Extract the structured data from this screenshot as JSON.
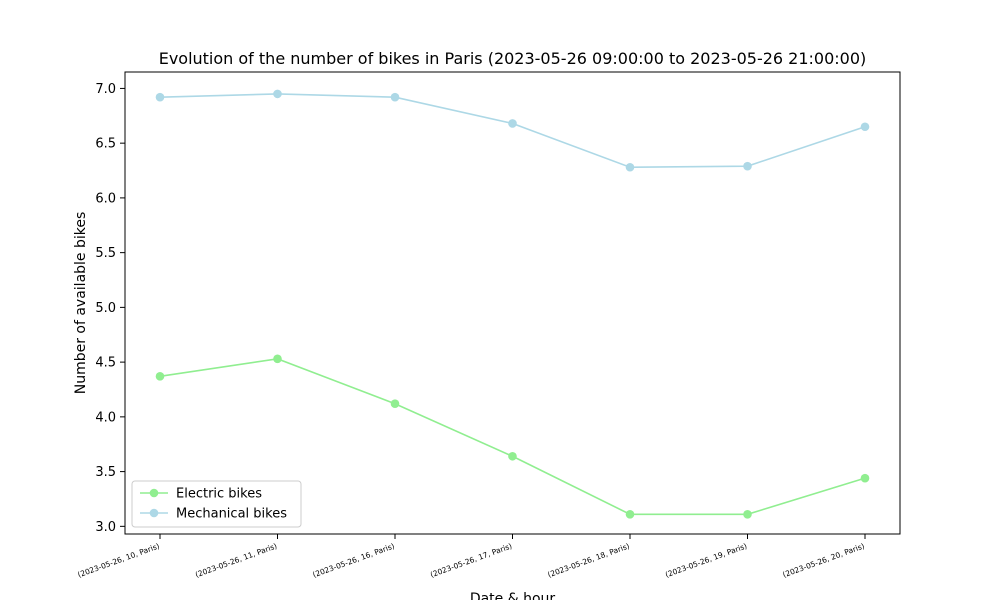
{
  "chart_data": {
    "type": "line",
    "title": "Evolution of the number of bikes in Paris (2023-05-26 09:00:00 to 2023-05-26 21:00:00)",
    "xlabel": "Date & hour",
    "ylabel": "Number of available bikes",
    "categories": [
      "(2023-05-26, 10, Paris)",
      "(2023-05-26, 11, Paris)",
      "(2023-05-26, 16, Paris)",
      "(2023-05-26, 17, Paris)",
      "(2023-05-26, 18, Paris)",
      "(2023-05-26, 19, Paris)",
      "(2023-05-26, 20, Paris)"
    ],
    "series": [
      {
        "name": "Electric bikes",
        "color": "#90ee90",
        "values": [
          4.37,
          4.53,
          4.12,
          3.64,
          3.11,
          3.11,
          3.44
        ]
      },
      {
        "name": "Mechanical bikes",
        "color": "#add8e6",
        "values": [
          6.92,
          6.95,
          6.92,
          6.68,
          6.28,
          6.29,
          6.65
        ]
      }
    ],
    "yticks": [
      "3.0",
      "3.5",
      "4.0",
      "4.5",
      "5.0",
      "5.5",
      "6.0",
      "6.5",
      "7.0"
    ],
    "ylim": [
      2.93,
      7.15
    ],
    "grid": false,
    "legend_position": "lower-left"
  }
}
